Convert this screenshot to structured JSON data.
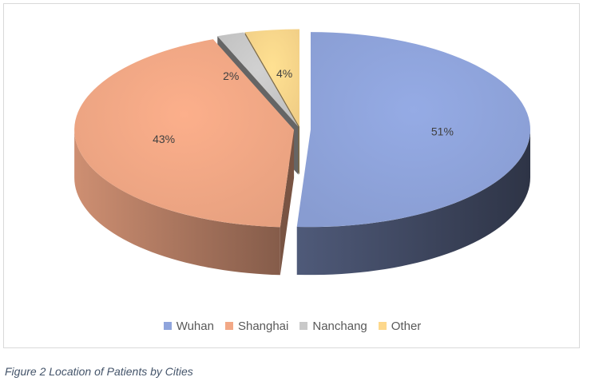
{
  "caption": "Figure 2 Location of Patients by Cities",
  "chart_data": {
    "type": "pie",
    "title": "",
    "style": "3d-exploded",
    "legend_position": "bottom",
    "slices": [
      {
        "label": "Wuhan",
        "value": 51,
        "display": "51%",
        "color": "#8fa4dc"
      },
      {
        "label": "Shanghai",
        "value": 43,
        "display": "43%",
        "color": "#f2a886"
      },
      {
        "label": "Nanchang",
        "value": 2,
        "display": "2%",
        "color": "#c9c9c9"
      },
      {
        "label": "Other",
        "value": 4,
        "display": "4%",
        "color": "#fdd88c"
      }
    ]
  }
}
